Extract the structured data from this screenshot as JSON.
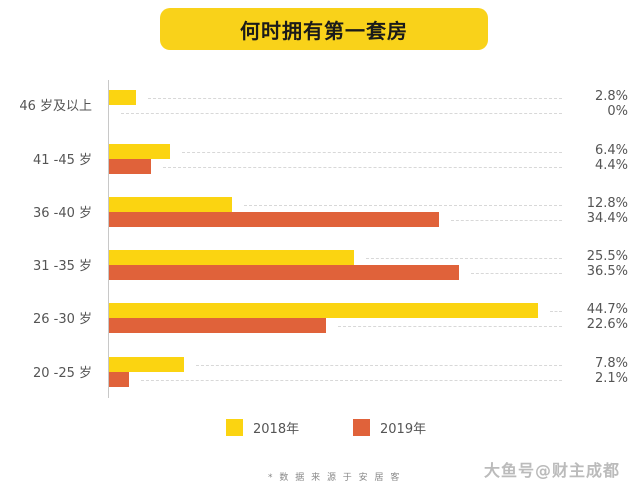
{
  "title": "何时拥有第一套房",
  "legend": [
    {
      "label": "2018年",
      "color": "#fbd411"
    },
    {
      "label": "2019年",
      "color": "#e0623a"
    }
  ],
  "source_note": "* 数 据 来 源 于 安 居 客",
  "watermark": "大鱼号@财主成都",
  "rows": [
    {
      "label": "46 岁及以上",
      "v2018": "2.8%",
      "v2019": "0%"
    },
    {
      "label": "41 -45 岁",
      "v2018": "6.4%",
      "v2019": "4.4%"
    },
    {
      "label": "36 -40 岁",
      "v2018": "12.8%",
      "v2019": "34.4%"
    },
    {
      "label": "31 -35 岁",
      "v2018": "25.5%",
      "v2019": "36.5%"
    },
    {
      "label": "26 -30 岁",
      "v2018": "44.7%",
      "v2019": "22.6%"
    },
    {
      "label": "20 -25 岁",
      "v2018": "7.8%",
      "v2019": "2.1%"
    }
  ],
  "chart_data": {
    "type": "bar",
    "orientation": "horizontal",
    "title": "何时拥有第一套房",
    "categories": [
      "46 岁及以上",
      "41 -45 岁",
      "36 -40 岁",
      "31 -35 岁",
      "26 -30 岁",
      "20 -25 岁"
    ],
    "series": [
      {
        "name": "2018年",
        "color": "#fbd411",
        "values": [
          2.8,
          6.4,
          12.8,
          25.5,
          44.7,
          7.8
        ]
      },
      {
        "name": "2019年",
        "color": "#e0623a",
        "values": [
          0,
          4.4,
          34.4,
          36.5,
          22.6,
          2.1
        ]
      }
    ],
    "xlabel": "",
    "ylabel": "",
    "unit": "%",
    "grid": false,
    "legend_position": "bottom",
    "annotation": "* 数据来源于安居客"
  }
}
